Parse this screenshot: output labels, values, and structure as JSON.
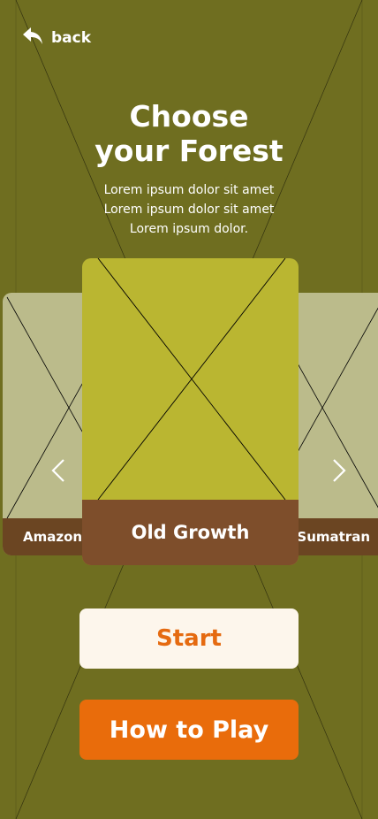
{
  "nav": {
    "back_label": "back"
  },
  "header": {
    "title_lines": [
      "Choose",
      "your Forest"
    ],
    "description_lines": [
      "Lorem ipsum dolor sit amet",
      "Lorem ipsum dolor sit amet",
      "Lorem ipsum dolor."
    ]
  },
  "carousel": {
    "cards": [
      {
        "label": "Amazon"
      },
      {
        "label": "Old Growth"
      },
      {
        "label": "Sumatran"
      }
    ]
  },
  "actions": {
    "start_label": "Start",
    "how_to_play_label": "How to Play"
  },
  "icons": {
    "back": "back-arrow-icon",
    "prev": "chevron-left-icon",
    "next": "chevron-right-icon"
  },
  "colors": {
    "background": "#6f6e20",
    "card_center": "#bab631",
    "card_side": "#bbbb8b",
    "label_bar": "#7e4e2b",
    "start_bg": "#fdf6ec",
    "accent_orange": "#e96c0b"
  }
}
